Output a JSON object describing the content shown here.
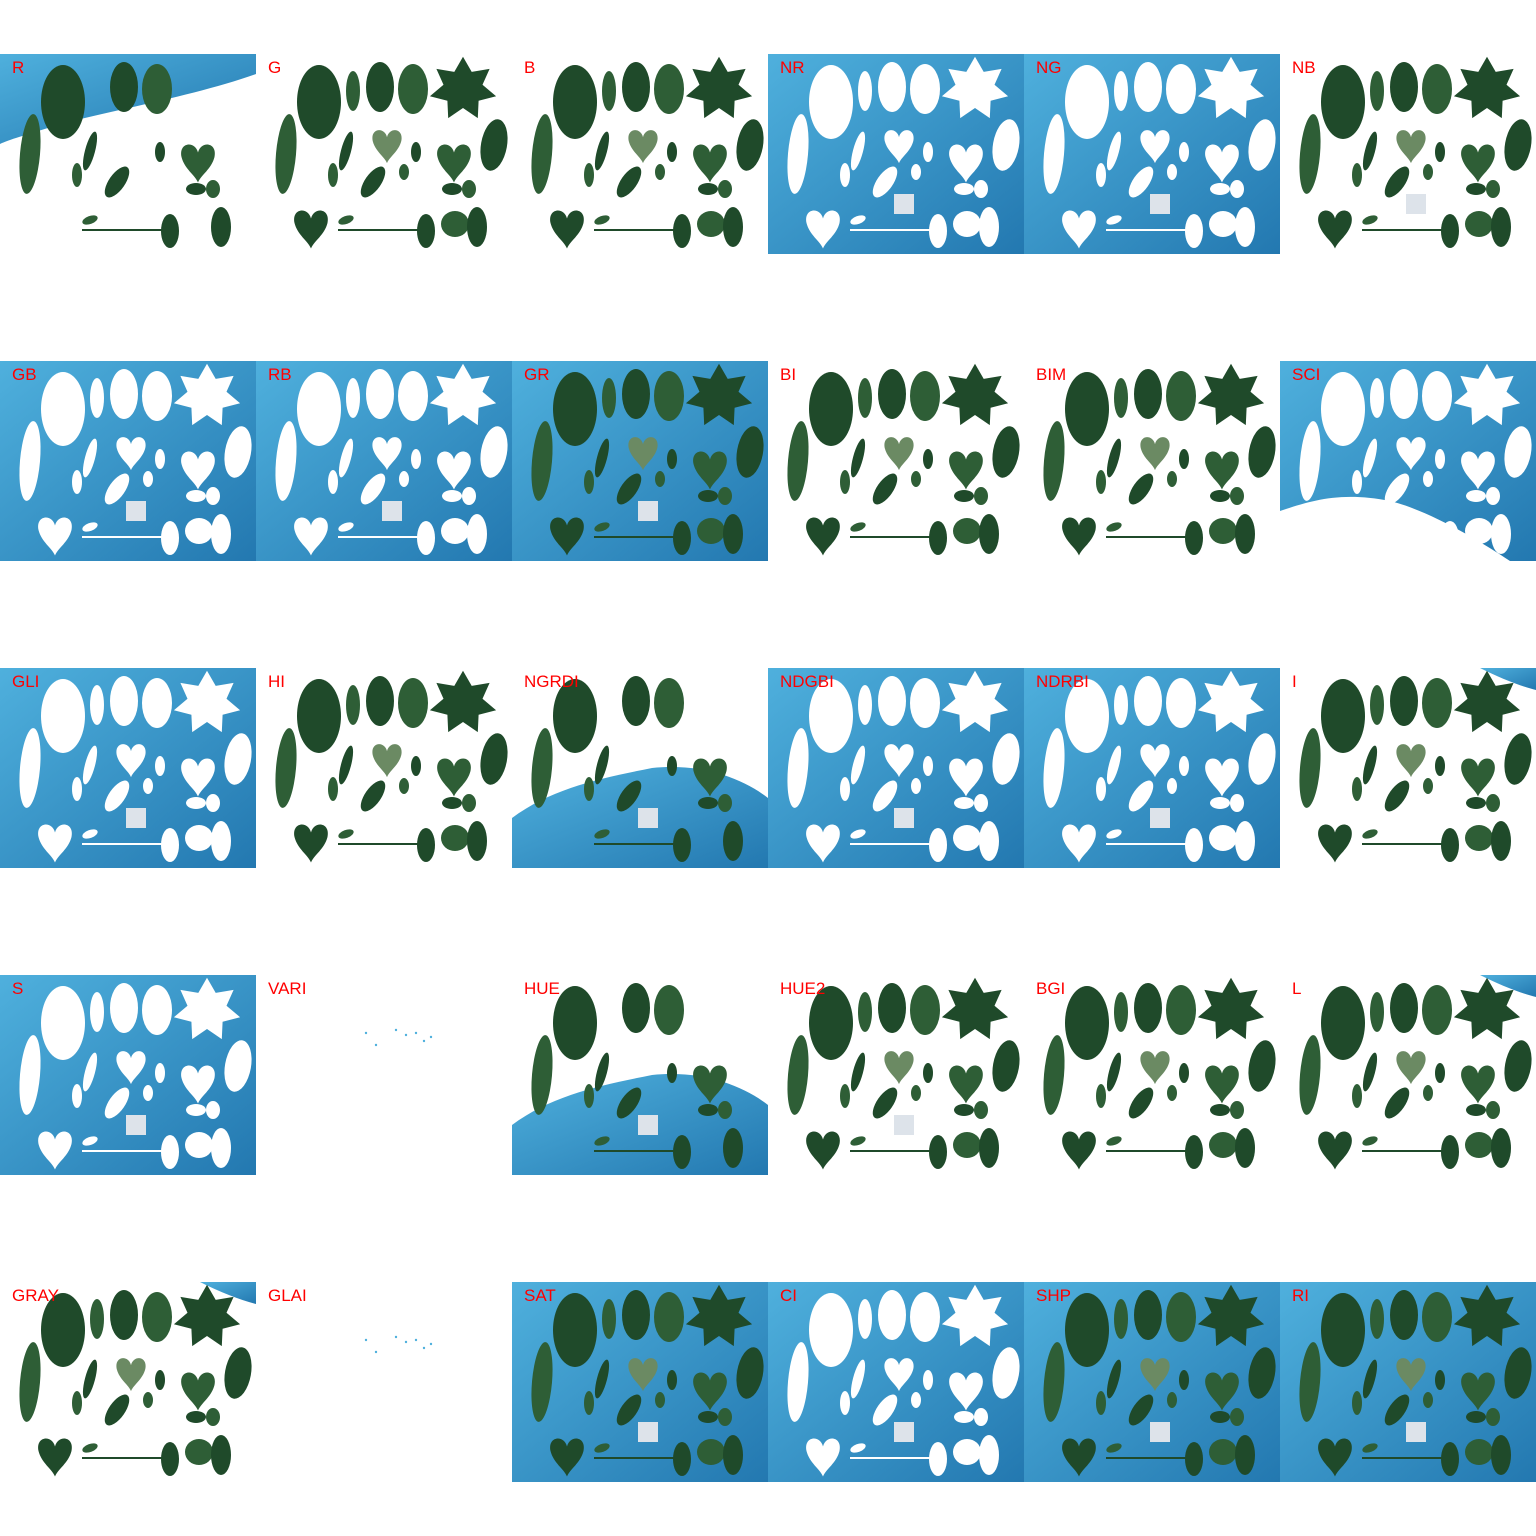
{
  "label_color": "#ff0000",
  "colors": {
    "background_blue_light": "#4fb0dd",
    "background_blue_dark": "#2378b0",
    "leaf_dark": "#1f4a2a",
    "leaf_mid": "#2e5e36",
    "leaf_light": "#6b8a63",
    "masked": "#ffffff",
    "reference_square": "#dde3ea"
  },
  "panels": [
    {
      "label": "R",
      "bg": "partial-top-left",
      "leaves": "green-sparse",
      "ref_square": false
    },
    {
      "label": "G",
      "bg": "none",
      "leaves": "green",
      "ref_square": false
    },
    {
      "label": "B",
      "bg": "none",
      "leaves": "green",
      "ref_square": false
    },
    {
      "label": "NR",
      "bg": "full",
      "leaves": "white",
      "ref_square": true
    },
    {
      "label": "NG",
      "bg": "full",
      "leaves": "white",
      "ref_square": true
    },
    {
      "label": "NB",
      "bg": "none",
      "leaves": "green",
      "ref_square": true
    },
    {
      "label": "GB",
      "bg": "full",
      "leaves": "white",
      "ref_square": true
    },
    {
      "label": "RB",
      "bg": "full",
      "leaves": "white",
      "ref_square": true
    },
    {
      "label": "GR",
      "bg": "full",
      "leaves": "green",
      "ref_square": true
    },
    {
      "label": "BI",
      "bg": "none",
      "leaves": "green",
      "ref_square": false
    },
    {
      "label": "BIM",
      "bg": "none",
      "leaves": "green",
      "ref_square": false
    },
    {
      "label": "SCI",
      "bg": "partial-top",
      "leaves": "white",
      "ref_square": false
    },
    {
      "label": "GLI",
      "bg": "full",
      "leaves": "white",
      "ref_square": true
    },
    {
      "label": "HI",
      "bg": "none",
      "leaves": "green",
      "ref_square": false
    },
    {
      "label": "NGRDI",
      "bg": "partial-bottom",
      "leaves": "green-sparse",
      "ref_square": true
    },
    {
      "label": "NDGBI",
      "bg": "full",
      "leaves": "white",
      "ref_square": true
    },
    {
      "label": "NDRBI",
      "bg": "full",
      "leaves": "white",
      "ref_square": true
    },
    {
      "label": "I",
      "bg": "corner",
      "leaves": "green",
      "ref_square": false
    },
    {
      "label": "S",
      "bg": "full",
      "leaves": "white",
      "ref_square": true
    },
    {
      "label": "VARI",
      "bg": "none",
      "leaves": "none",
      "ref_square": false
    },
    {
      "label": "HUE",
      "bg": "partial-bottom",
      "leaves": "green-sparse",
      "ref_square": true
    },
    {
      "label": "HUE2",
      "bg": "none",
      "leaves": "green",
      "ref_square": true
    },
    {
      "label": "BGI",
      "bg": "none",
      "leaves": "green",
      "ref_square": false
    },
    {
      "label": "L",
      "bg": "corner",
      "leaves": "green",
      "ref_square": false
    },
    {
      "label": "GRAY",
      "bg": "corner",
      "leaves": "green",
      "ref_square": false
    },
    {
      "label": "GLAI",
      "bg": "none",
      "leaves": "none",
      "ref_square": false
    },
    {
      "label": "SAT",
      "bg": "full",
      "leaves": "green",
      "ref_square": true
    },
    {
      "label": "CI",
      "bg": "full",
      "leaves": "white",
      "ref_square": true
    },
    {
      "label": "SHP",
      "bg": "full",
      "leaves": "green",
      "ref_square": true
    },
    {
      "label": "RI",
      "bg": "full",
      "leaves": "green",
      "ref_square": true
    }
  ]
}
